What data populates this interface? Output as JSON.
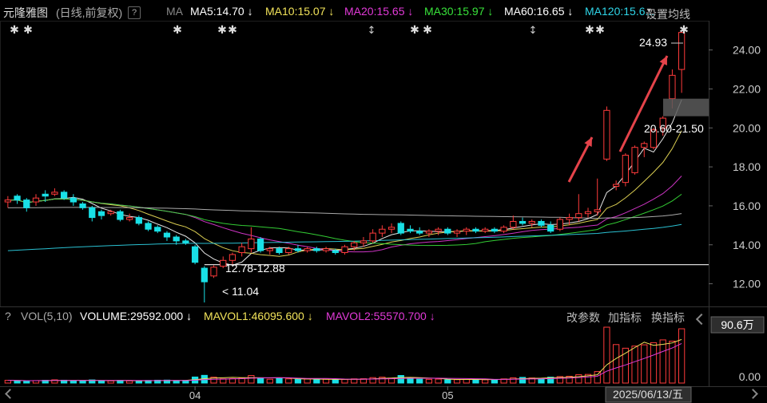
{
  "header": {
    "stock_name": "元隆雅图",
    "period_label": "(日线,前复权)",
    "help": "?",
    "ma_label": "MA",
    "ma_set_label": "设置均线",
    "ma_items": [
      {
        "text": "MA5:14.70 ↓",
        "color": "#ffffff"
      },
      {
        "text": "MA10:15.07 ↓",
        "color": "#f2e35a"
      },
      {
        "text": "MA20:15.65 ↓",
        "color": "#e23ad8"
      },
      {
        "text": "MA30:15.97 ↓",
        "color": "#38e23a"
      },
      {
        "text": "MA60:16.65 ↓",
        "color": "#ffffff"
      },
      {
        "text": "MA120:15.6...",
        "color": "#2fd5e8"
      }
    ]
  },
  "volume_header": {
    "help": "?",
    "label": "VOL(5,10)",
    "volume": "VOLUME:29592.000 ↓",
    "mavol1": "MAVOL1:46095.600 ↓",
    "mavol2": "MAVOL2:55570.700 ↓",
    "btn_params": "改参数",
    "btn_add": "加指标",
    "btn_switch": "换指标",
    "mavol1_color": "#f2e35a",
    "mavol2_color": "#e23ad8"
  },
  "annotations": {
    "max_label": "24.93",
    "min_label": "11.04",
    "gap_low": "12.78-12.88",
    "gap_high": "20.60-21.50",
    "date_label": "2025/06/13/五",
    "vol_max_label": "90.6万",
    "vol_zero_label": "0.00"
  },
  "chart_data": {
    "type": "candlestick",
    "y_ticks": [
      "24.00",
      "22.00",
      "20.00",
      "18.00",
      "16.00",
      "14.00",
      "12.00"
    ],
    "y_tick_values": [
      24,
      22,
      20,
      18,
      16,
      14,
      12
    ],
    "x_ticks": [
      "04",
      "05"
    ],
    "ylim": [
      11,
      25.5
    ],
    "up_color": "#ff3b3b",
    "down_color": "#19e0e6",
    "candles": [
      {
        "o": 16.2,
        "h": 16.5,
        "l": 15.9,
        "c": 16.3
      },
      {
        "o": 16.5,
        "h": 16.6,
        "l": 16.1,
        "c": 16.3
      },
      {
        "o": 16.3,
        "h": 16.4,
        "l": 15.7,
        "c": 15.9
      },
      {
        "o": 16.2,
        "h": 16.6,
        "l": 16.0,
        "c": 16.4
      },
      {
        "o": 16.6,
        "h": 16.8,
        "l": 16.2,
        "c": 16.5
      },
      {
        "o": 16.6,
        "h": 16.9,
        "l": 16.5,
        "c": 16.7
      },
      {
        "o": 16.7,
        "h": 16.8,
        "l": 16.3,
        "c": 16.4
      },
      {
        "o": 16.4,
        "h": 16.6,
        "l": 16.0,
        "c": 16.2
      },
      {
        "o": 16.1,
        "h": 16.2,
        "l": 15.8,
        "c": 15.9
      },
      {
        "o": 15.9,
        "h": 16.0,
        "l": 15.2,
        "c": 15.4
      },
      {
        "o": 15.7,
        "h": 15.8,
        "l": 15.3,
        "c": 15.5
      },
      {
        "o": 15.6,
        "h": 15.8,
        "l": 15.5,
        "c": 15.7
      },
      {
        "o": 15.7,
        "h": 15.8,
        "l": 15.2,
        "c": 15.3
      },
      {
        "o": 15.3,
        "h": 15.6,
        "l": 15.2,
        "c": 15.4
      },
      {
        "o": 15.4,
        "h": 15.5,
        "l": 15.0,
        "c": 15.1
      },
      {
        "o": 15.1,
        "h": 15.2,
        "l": 14.7,
        "c": 14.8
      },
      {
        "o": 14.9,
        "h": 15.0,
        "l": 14.6,
        "c": 14.7
      },
      {
        "o": 14.6,
        "h": 14.7,
        "l": 14.2,
        "c": 14.4
      },
      {
        "o": 14.4,
        "h": 14.5,
        "l": 14.0,
        "c": 14.2
      },
      {
        "o": 14.2,
        "h": 14.3,
        "l": 14.0,
        "c": 14.1
      },
      {
        "o": 13.9,
        "h": 14.0,
        "l": 13.0,
        "c": 13.1
      },
      {
        "o": 12.8,
        "h": 12.9,
        "l": 11.04,
        "c": 12.1
      },
      {
        "o": 12.4,
        "h": 12.95,
        "l": 12.3,
        "c": 12.85
      },
      {
        "o": 12.9,
        "h": 13.4,
        "l": 12.8,
        "c": 13.2
      },
      {
        "o": 13.2,
        "h": 13.6,
        "l": 13.0,
        "c": 13.5
      },
      {
        "o": 13.6,
        "h": 14.1,
        "l": 13.4,
        "c": 13.9
      },
      {
        "o": 13.8,
        "h": 14.9,
        "l": 13.6,
        "c": 14.3
      },
      {
        "o": 14.3,
        "h": 14.4,
        "l": 13.6,
        "c": 13.7
      },
      {
        "o": 13.7,
        "h": 13.9,
        "l": 13.5,
        "c": 13.8
      },
      {
        "o": 13.8,
        "h": 13.9,
        "l": 13.5,
        "c": 13.6
      },
      {
        "o": 13.6,
        "h": 13.9,
        "l": 13.5,
        "c": 13.8
      },
      {
        "o": 13.8,
        "h": 14.0,
        "l": 13.6,
        "c": 13.7
      },
      {
        "o": 13.7,
        "h": 13.9,
        "l": 13.6,
        "c": 13.8
      },
      {
        "o": 13.8,
        "h": 13.9,
        "l": 13.6,
        "c": 13.7
      },
      {
        "o": 13.7,
        "h": 13.9,
        "l": 13.6,
        "c": 13.8
      },
      {
        "o": 13.7,
        "h": 13.8,
        "l": 13.5,
        "c": 13.6
      },
      {
        "o": 13.6,
        "h": 14.0,
        "l": 13.5,
        "c": 13.9
      },
      {
        "o": 13.9,
        "h": 14.2,
        "l": 13.7,
        "c": 14.1
      },
      {
        "o": 14.1,
        "h": 14.4,
        "l": 13.9,
        "c": 14.2
      },
      {
        "o": 14.2,
        "h": 14.8,
        "l": 14.1,
        "c": 14.6
      },
      {
        "o": 14.6,
        "h": 15.0,
        "l": 14.4,
        "c": 14.8
      },
      {
        "o": 14.8,
        "h": 15.1,
        "l": 14.6,
        "c": 14.9
      },
      {
        "o": 15.1,
        "h": 15.2,
        "l": 14.5,
        "c": 14.6
      },
      {
        "o": 14.8,
        "h": 15.0,
        "l": 14.6,
        "c": 14.7
      },
      {
        "o": 14.7,
        "h": 14.9,
        "l": 14.5,
        "c": 14.6
      },
      {
        "o": 14.6,
        "h": 14.8,
        "l": 14.4,
        "c": 14.7
      },
      {
        "o": 14.7,
        "h": 14.9,
        "l": 14.5,
        "c": 14.8
      },
      {
        "o": 14.8,
        "h": 14.9,
        "l": 14.5,
        "c": 14.6
      },
      {
        "o": 14.6,
        "h": 14.8,
        "l": 14.4,
        "c": 14.7
      },
      {
        "o": 14.7,
        "h": 14.9,
        "l": 14.5,
        "c": 14.8
      },
      {
        "o": 14.8,
        "h": 14.9,
        "l": 14.6,
        "c": 14.7
      },
      {
        "o": 14.7,
        "h": 14.9,
        "l": 14.6,
        "c": 14.8
      },
      {
        "o": 14.8,
        "h": 14.9,
        "l": 14.6,
        "c": 14.7
      },
      {
        "o": 14.7,
        "h": 15.0,
        "l": 14.6,
        "c": 14.9
      },
      {
        "o": 14.9,
        "h": 15.5,
        "l": 14.8,
        "c": 15.2
      },
      {
        "o": 15.2,
        "h": 15.4,
        "l": 15.0,
        "c": 15.1
      },
      {
        "o": 15.1,
        "h": 15.3,
        "l": 14.9,
        "c": 15.2
      },
      {
        "o": 15.2,
        "h": 15.3,
        "l": 14.9,
        "c": 15.0
      },
      {
        "o": 15.0,
        "h": 15.2,
        "l": 14.6,
        "c": 14.7
      },
      {
        "o": 14.8,
        "h": 15.4,
        "l": 14.7,
        "c": 15.3
      },
      {
        "o": 15.3,
        "h": 15.6,
        "l": 15.0,
        "c": 15.4
      },
      {
        "o": 15.4,
        "h": 16.6,
        "l": 15.2,
        "c": 15.6
      },
      {
        "o": 15.6,
        "h": 15.9,
        "l": 15.4,
        "c": 15.7
      },
      {
        "o": 15.7,
        "h": 17.4,
        "l": 15.5,
        "c": 15.8
      },
      {
        "o": 18.4,
        "h": 21.1,
        "l": 18.3,
        "c": 20.9
      },
      {
        "o": 17.0,
        "h": 17.3,
        "l": 16.8,
        "c": 17.1
      },
      {
        "o": 17.2,
        "h": 18.7,
        "l": 17.0,
        "c": 18.6
      },
      {
        "o": 17.7,
        "h": 19.1,
        "l": 17.6,
        "c": 19.0
      },
      {
        "o": 19.0,
        "h": 19.3,
        "l": 18.5,
        "c": 19.2
      },
      {
        "o": 19.0,
        "h": 20.0,
        "l": 18.9,
        "c": 19.9
      },
      {
        "o": 20.0,
        "h": 20.6,
        "l": 19.6,
        "c": 20.5
      },
      {
        "o": 21.5,
        "h": 23.0,
        "l": 21.0,
        "c": 22.7
      },
      {
        "o": 23.0,
        "h": 24.93,
        "l": 21.8,
        "c": 24.9
      }
    ],
    "volumes": [
      4.5,
      4.0,
      3.2,
      4.0,
      4.5,
      5.2,
      4.6,
      3.9,
      3.6,
      5.1,
      4.0,
      3.5,
      4.4,
      3.5,
      3.2,
      4.2,
      4.6,
      4.8,
      4.0,
      4.3,
      9.8,
      12.5,
      9.5,
      6.8,
      7.2,
      8.0,
      12.2,
      8.5,
      6.2,
      7.5,
      6.8,
      6.0,
      6.5,
      5.8,
      6.2,
      5.4,
      5.8,
      6.8,
      7.0,
      8.8,
      9.5,
      8.0,
      12.3,
      7.6,
      6.2,
      6.0,
      6.4,
      5.2,
      5.5,
      5.9,
      6.4,
      5.3,
      5.6,
      6.7,
      8.5,
      9.2,
      8.2,
      7.1,
      9.6,
      10.5,
      11.0,
      13.5,
      14.0,
      18.6,
      90.6,
      62.4,
      56.5,
      60.0,
      62.0,
      65.5,
      70.0,
      68.0,
      88.0
    ],
    "ma_lines": [
      {
        "name": "MA5",
        "color": "#ffffff"
      },
      {
        "name": "MA10",
        "color": "#f2e35a"
      },
      {
        "name": "MA20",
        "color": "#e23ad8"
      },
      {
        "name": "MA30",
        "color": "#38e23a"
      },
      {
        "name": "MA60",
        "color": "#bbbbbb"
      },
      {
        "name": "MA120",
        "color": "#2fd5e8"
      }
    ]
  }
}
